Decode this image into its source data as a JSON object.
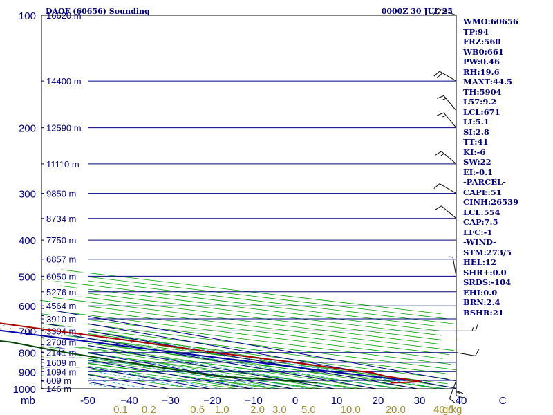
{
  "header": {
    "title": "DAOF (60656) Sounding",
    "date": "0000Z 30 JUL 25"
  },
  "stats": [
    "WMO:60656",
    "TP:94",
    "FRZ:560",
    "WB0:661",
    "PW:0.46",
    "RH:19.6",
    "MAXT:44.5",
    "TH:5904",
    "L57:9.2",
    "LCL:671",
    "LI:5.1",
    "SI:2.8",
    "TT:41",
    "KI:-6",
    "SW:22",
    "EI:-0.1",
    "-PARCEL-",
    "CAPE:51",
    "CINH:26539",
    "LCL:554",
    "CAP:7.5",
    "LFC:-1",
    "-WIND-",
    "STM:273/5",
    "HEL:12",
    "SHR+:0.0",
    "SRDS:-104",
    "EHI:0.0",
    "BRN:2.4",
    "BSHR:21"
  ],
  "chart_data": {
    "type": "skewt",
    "title": "DAOF (60656) Sounding",
    "pressure_axis": {
      "unit_label": "mb",
      "ticks": [
        100,
        200,
        300,
        400,
        500,
        600,
        700,
        800,
        900,
        1000
      ],
      "ylim": [
        1000,
        100
      ]
    },
    "temperature_axis": {
      "ticks": [
        -50,
        -40,
        -30,
        -20,
        -10,
        0,
        10,
        20,
        30,
        40,
        50
      ],
      "tick_labels": [
        "-50",
        "−40",
        "−30",
        "−20",
        "−10",
        "0",
        "10",
        "20",
        "30",
        "40",
        "C"
      ]
    },
    "mixing_ratio_axis": {
      "unit_label": "g/kg",
      "values": [
        0.1,
        0.2,
        0.6,
        1.0,
        2.0,
        3.0,
        5.0,
        10.0,
        20.0,
        40.0
      ],
      "tick_labels": [
        "0.1",
        "0.2",
        "0.6",
        "1.0",
        "2.0",
        "3.0",
        "5.0",
        "10.0",
        "20.0",
        "40.0"
      ]
    },
    "height_levels": [
      {
        "p": 100,
        "label": "16620 m"
      },
      {
        "p": 150,
        "label": "14400 m"
      },
      {
        "p": 200,
        "label": "12590 m"
      },
      {
        "p": 250,
        "label": "11110 m"
      },
      {
        "p": 300,
        "label": "9850 m"
      },
      {
        "p": 350,
        "label": "8734 m"
      },
      {
        "p": 400,
        "label": "7750 m"
      },
      {
        "p": 450,
        "label": "6857 m"
      },
      {
        "p": 500,
        "label": "6050 m"
      },
      {
        "p": 550,
        "label": "5276 m"
      },
      {
        "p": 600,
        "label": "4564 m"
      },
      {
        "p": 650,
        "label": "3910 m"
      },
      {
        "p": 700,
        "label": "3304 m"
      },
      {
        "p": 750,
        "label": "2708 m"
      },
      {
        "p": 800,
        "label": "2141 m"
      },
      {
        "p": 850,
        "label": "1609 m"
      },
      {
        "p": 900,
        "label": "1094 m"
      },
      {
        "p": 950,
        "label": "609 m"
      },
      {
        "p": 1000,
        "label": "146 m"
      }
    ],
    "series": [
      {
        "name": "temperature",
        "color": "#aa0000",
        "points": [
          {
            "p": 965,
            "t": 31.4
          },
          {
            "p": 958,
            "t": 40.5
          },
          {
            "p": 925,
            "t": 39.6
          },
          {
            "p": 905,
            "t": 41.2
          },
          {
            "p": 890,
            "t": 39.3
          },
          {
            "p": 850,
            "t": 36.5
          },
          {
            "p": 800,
            "t": 31.0
          },
          {
            "p": 750,
            "t": 27.5
          },
          {
            "p": 700,
            "t": 22.5
          },
          {
            "p": 650,
            "t": 17.8
          },
          {
            "p": 600,
            "t": 12.5
          },
          {
            "p": 550,
            "t": 7.0
          },
          {
            "p": 500,
            "t": -0.5
          },
          {
            "p": 450,
            "t": -5.5
          },
          {
            "p": 400,
            "t": -11.5
          },
          {
            "p": 370,
            "t": -15.0
          },
          {
            "p": 350,
            "t": -16.0
          },
          {
            "p": 300,
            "t": -24.5
          },
          {
            "p": 250,
            "t": -34.0
          },
          {
            "p": 200,
            "t": -45.5
          },
          {
            "p": 180,
            "t": -50.8
          },
          {
            "p": 150,
            "t": -60.0
          },
          {
            "p": 130,
            "t": -66.5
          },
          {
            "p": 100,
            "t": -79.5
          }
        ]
      },
      {
        "name": "dewpoint",
        "color": "#004400",
        "points": [
          {
            "p": 965,
            "t": 13.8
          },
          {
            "p": 945,
            "t": 7.5
          },
          {
            "p": 925,
            "t": -1.5
          },
          {
            "p": 800,
            "t": -5.0
          },
          {
            "p": 750,
            "t": -4.0
          },
          {
            "p": 700,
            "t": -14.5
          },
          {
            "p": 600,
            "t": -12.0
          },
          {
            "p": 500,
            "t": -2.5
          },
          {
            "p": 480,
            "t": -15.0
          },
          {
            "p": 400,
            "t": -25.0
          },
          {
            "p": 360,
            "t": -31.0
          },
          {
            "p": 340,
            "t": -48.0
          },
          {
            "p": 300,
            "t": -46.5
          },
          {
            "p": 250,
            "t": -56.0
          },
          {
            "p": 200,
            "t": -67.0
          },
          {
            "p": 170,
            "t": -71.5
          },
          {
            "p": 150,
            "t": -78.0
          },
          {
            "p": 100,
            "t": -90.5
          }
        ]
      },
      {
        "name": "parcel",
        "color": "#0000aa",
        "points": [
          {
            "p": 950,
            "t": 38.5
          },
          {
            "p": 900,
            "t": 32.8
          },
          {
            "p": 850,
            "t": 27.5
          },
          {
            "p": 800,
            "t": 21.5
          },
          {
            "p": 750,
            "t": 15.8
          },
          {
            "p": 700,
            "t": 9.8
          },
          {
            "p": 650,
            "t": 3.8
          },
          {
            "p": 600,
            "t": -1.8
          },
          {
            "p": 560,
            "t": -6.5
          },
          {
            "p": 500,
            "t": -11.5
          },
          {
            "p": 400,
            "t": -25.0
          },
          {
            "p": 300,
            "t": -42.0
          },
          {
            "p": 200,
            "t": -64.0
          },
          {
            "p": 150,
            "t": -78.5
          },
          {
            "p": 120,
            "t": -90.0
          }
        ]
      }
    ],
    "winds": [
      {
        "p": 100,
        "dir": 290,
        "spd": 25
      },
      {
        "p": 150,
        "dir": 300,
        "spd": 20
      },
      {
        "p": 180,
        "dir": 320,
        "spd": 15
      },
      {
        "p": 200,
        "dir": 320,
        "spd": 15
      },
      {
        "p": 250,
        "dir": 310,
        "spd": 15
      },
      {
        "p": 300,
        "dir": 300,
        "spd": 10
      },
      {
        "p": 350,
        "dir": 310,
        "spd": 10
      },
      {
        "p": 500,
        "dir": 350,
        "spd": 5
      },
      {
        "p": 700,
        "dir": 90,
        "spd": 15
      },
      {
        "p": 800,
        "dir": 100,
        "spd": 10
      },
      {
        "p": 900,
        "dir": 180,
        "spd": 10
      },
      {
        "p": 925,
        "dir": 180,
        "spd": 15
      },
      {
        "p": 950,
        "dir": 200,
        "spd": 10
      }
    ],
    "colors": {
      "isobars": "#000080",
      "isotherms": "#000080",
      "dry_adiabats": "#00a000",
      "moist_adiabats": "#00a000",
      "mixing_ratio": "#00a0c0",
      "parcel_area": "#808080"
    }
  }
}
